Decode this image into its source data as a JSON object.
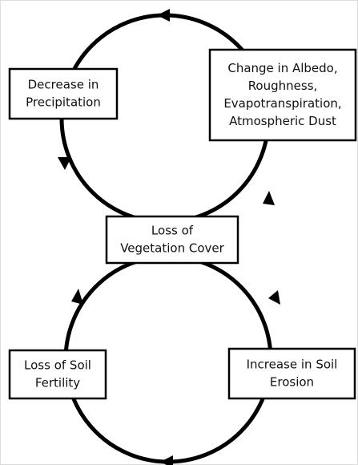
{
  "nodes": [
    {
      "lines": [
        "Decrease in",
        "Precipitation"
      ]
    },
    {
      "lines": [
        "Change in Albedo,",
        "Roughness,",
        "Evapotranspiration,",
        "Atmospheric Dust"
      ]
    },
    {
      "lines": [
        "Loss of",
        "Vegetation Cover"
      ]
    },
    {
      "lines": [
        "Loss of Soil",
        "Fertility"
      ]
    },
    {
      "lines": [
        "Increase in Soil",
        "Erosion"
      ]
    }
  ]
}
